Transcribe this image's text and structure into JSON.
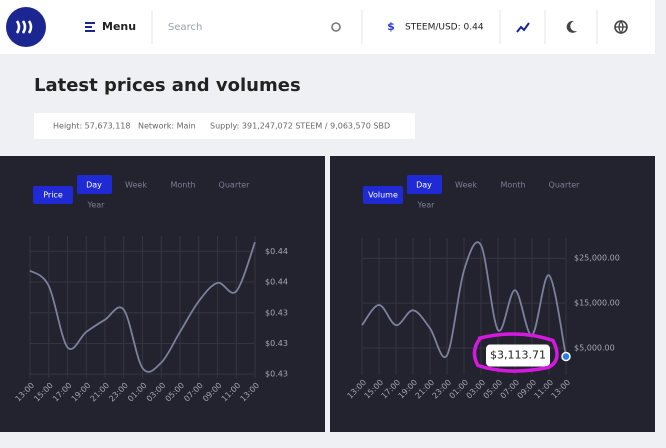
{
  "header": {
    "menu": "Menu",
    "search_placeholder": "Search",
    "price": "STEEM/USD: 0.44"
  },
  "title": "Latest prices and volumes",
  "info": {
    "height": "Height: 57,673,118",
    "network": "Network: Main",
    "supply": "Supply: 391,247,072 STEEM / 9,063,570 SBD"
  },
  "chart_data": [
    {
      "type": "line",
      "tag": "Price",
      "periods": [
        "Day",
        "Week",
        "Month",
        "Quarter",
        "Year"
      ],
      "active_period": "Day",
      "categories": [
        "13:00",
        "15:00",
        "17:00",
        "19:00",
        "21:00",
        "23:00",
        "01:00",
        "03:00",
        "05:00",
        "07:00",
        "09:00",
        "11:00",
        "13:00"
      ],
      "values": [
        0.4395,
        0.4375,
        0.4295,
        0.4315,
        0.4331,
        0.4344,
        0.4268,
        0.4275,
        0.4315,
        0.4355,
        0.4379,
        0.4368,
        0.4432
      ],
      "color": "#7d809c",
      "ylim": [
        0.4255,
        0.444
      ],
      "yticks": [
        {
          "value": 0.442,
          "label": "$0.44"
        },
        {
          "value": 0.438,
          "label": "$0.44"
        },
        {
          "value": 0.434,
          "label": "$0.43"
        },
        {
          "value": 0.43,
          "label": "$0.43"
        },
        {
          "value": 0.426,
          "label": "$0.43"
        }
      ],
      "grid": true
    },
    {
      "type": "line",
      "tag": "Volume",
      "periods": [
        "Day",
        "Week",
        "Month",
        "Quarter",
        "Year"
      ],
      "active_period": "Day",
      "categories": [
        "13:00",
        "15:00",
        "17:00",
        "19:00",
        "21:00",
        "23:00",
        "01:00",
        "03:00",
        "05:00",
        "07:00",
        "09:00",
        "11:00",
        "13:00"
      ],
      "values": [
        10100,
        14600,
        10100,
        13400,
        9400,
        3400,
        22300,
        27900,
        9000,
        17900,
        7900,
        21200,
        3113.71
      ],
      "value_labels": [
        null,
        null,
        null,
        null,
        null,
        null,
        null,
        null,
        null,
        null,
        null,
        null,
        "$3,113.71"
      ],
      "color": "#7d809c",
      "ylim": [
        -1000,
        29500
      ],
      "yticks": [
        {
          "value": 25000,
          "label": "$25,000.00"
        },
        {
          "value": 15000,
          "label": "$15,000.00"
        },
        {
          "value": 5000,
          "label": "$5,000.00"
        }
      ],
      "grid": true
    }
  ]
}
